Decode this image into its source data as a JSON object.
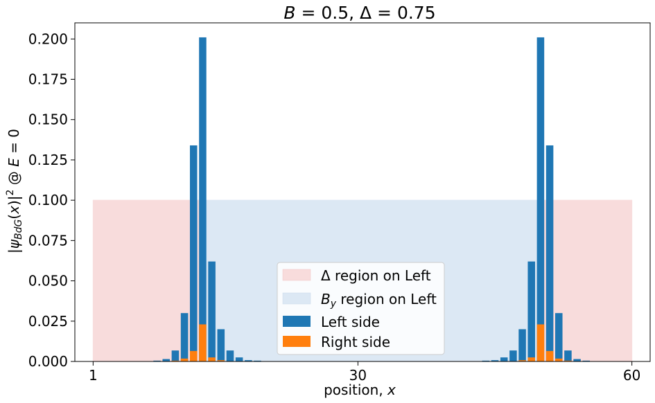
{
  "chart_data": {
    "type": "bar",
    "title": "B = 0.5, Δ = 0.75",
    "xlabel": "position, x",
    "ylabel": "|ψBdG(x)|² @ E = 0",
    "xlim": [
      -1,
      62
    ],
    "ylim": [
      0,
      0.21
    ],
    "x_ticks": [
      1,
      30,
      60
    ],
    "y_ticks": [
      0.0,
      0.025,
      0.05,
      0.075,
      0.1,
      0.125,
      0.15,
      0.175,
      0.2
    ],
    "y_tick_labels": [
      "0.000",
      "0.025",
      "0.050",
      "0.075",
      "0.100",
      "0.125",
      "0.150",
      "0.175",
      "0.200"
    ],
    "grid": false,
    "legend": {
      "placement": "lower-center",
      "entries": [
        {
          "label": "Δ region on Left",
          "color": "#f8dcdc"
        },
        {
          "label": "By region on Left",
          "color": "#dce8f4"
        },
        {
          "label": "Left side",
          "color": "#1f77b4"
        },
        {
          "label": "Right side",
          "color": "#ff7f0e"
        }
      ]
    },
    "regions": [
      {
        "name": "Δ region on Left",
        "x": [
          1,
          13
        ],
        "y": [
          0,
          0.1
        ],
        "color": "#f8dcdc"
      },
      {
        "name": "By region on Left",
        "x": [
          13,
          50
        ],
        "y": [
          0,
          0.1
        ],
        "color": "#dce8f4"
      },
      {
        "name": "Δ region on Left",
        "x": [
          50,
          60
        ],
        "y": [
          0,
          0.1
        ],
        "color": "#f8dcdc"
      }
    ],
    "x": [
      8,
      9,
      10,
      11,
      12,
      13,
      14,
      15,
      16,
      17,
      18,
      19,
      44,
      45,
      46,
      47,
      48,
      49,
      50,
      51,
      52,
      53,
      54,
      55
    ],
    "series": [
      {
        "name": "Left side",
        "color": "#1f77b4",
        "values": [
          0.0005,
          0.0015,
          0.0068,
          0.03,
          0.134,
          0.201,
          0.062,
          0.02,
          0.0068,
          0.0025,
          0.0008,
          0.0005,
          0.0005,
          0.0008,
          0.0025,
          0.0068,
          0.02,
          0.062,
          0.201,
          0.134,
          0.03,
          0.0068,
          0.0015,
          0.0005
        ]
      },
      {
        "name": "Right side",
        "color": "#ff7f0e",
        "values": [
          0.0,
          0.0002,
          0.0005,
          0.0018,
          0.0065,
          0.023,
          0.0025,
          0.0008,
          0.0002,
          0.0,
          0.0,
          0.0,
          0.0,
          0.0,
          0.0,
          0.0002,
          0.0008,
          0.0025,
          0.023,
          0.0065,
          0.0018,
          0.0005,
          0.0002,
          0.0
        ]
      }
    ]
  }
}
